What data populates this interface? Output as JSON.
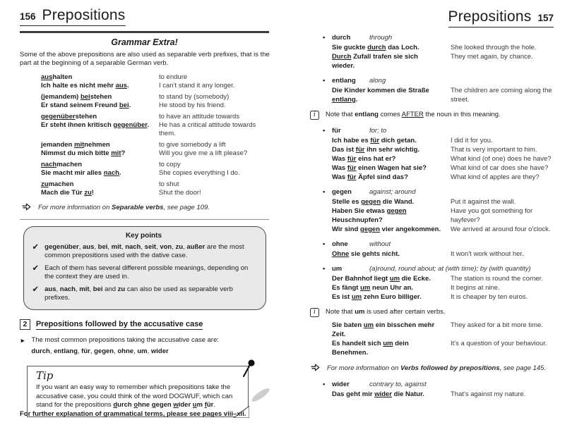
{
  "colors": {
    "text": "#1c1c1c",
    "muted_text": "#3a3a3a",
    "rule": "#3d3d3d",
    "keypoints_bg": "#e9e9e9",
    "box_border": "#4a4a4a"
  },
  "icons": {
    "check": "✔",
    "bullet": "•",
    "arrow_bullet": "►",
    "info": "i",
    "crossref_arrow": "right-block-arrow",
    "tip_pin": "pushpin"
  },
  "left_page": {
    "page_number": "156",
    "title": "Prepositions",
    "grammar_extra": {
      "heading": "Grammar Extra!",
      "intro": "Some of the above prepositions are also used as separable verb prefixes, that is the part at the beginning of a separable German verb.",
      "verb_pairs": [
        {
          "rows": [
            {
              "de": "**__aus__halten**",
              "en": "to endure"
            },
            {
              "de": "**Ich halte es nicht mehr __aus__.**",
              "en": "I can't stand it any longer."
            }
          ]
        },
        {
          "rows": [
            {
              "de": "**(jemandem) __bei__stehen**",
              "en": "to stand by (somebody)"
            },
            {
              "de": "**Er stand seinem Freund __bei__.**",
              "en": "He stood by his friend."
            }
          ]
        },
        {
          "rows": [
            {
              "de": "**__gegenüber__stehen**",
              "en": "to have an attitude towards"
            },
            {
              "de": "**Er steht ihnen kritisch __gegenüber__.**",
              "en": "He has a critical attitude towards them."
            }
          ]
        },
        {
          "rows": [
            {
              "de": "**jemanden __mit__nehmen**",
              "en": "to give somebody a lift"
            },
            {
              "de": "**Nimmst du mich bitte __mit__?**",
              "en": "Will you give me a lift please?"
            }
          ]
        },
        {
          "rows": [
            {
              "de": "**__nach__machen**",
              "en": "to copy"
            },
            {
              "de": "**Sie macht mir alles __nach__.**",
              "en": "She copies everything I do."
            }
          ]
        },
        {
          "rows": [
            {
              "de": "**__zu__machen**",
              "en": "to shut"
            },
            {
              "de": "**Mach die Tür __zu__!**",
              "en": "Shut the door!"
            }
          ]
        }
      ],
      "crossref": "For more information on **Separable verbs**, see page 109."
    },
    "key_points": {
      "title": "Key points",
      "items": [
        "**gegenüber**, **aus**, **bei**, **mit**, **nach**, **seit**, **von**, **zu**, **außer** are the most common prepositions used with the dative case.",
        "Each of them has several different possible meanings, depending on the context they are used in.",
        "**aus**, **nach**, **mit**, **bei** and **zu** can also be used as separable verb prefixes."
      ]
    },
    "section": {
      "number": "2",
      "heading": "Prepositions followed by the accusative case",
      "bullet_text": "The most common prepositions taking the accusative case are:",
      "prepositions": "**durch**, **entlang**, **für**, **gegen**, **ohne**, **um**, **wider**"
    },
    "tip": {
      "heading": "Tip",
      "text": "If you want an easy way to remember which prepositions take the accusative case, you could think of the word DOGWUF, which can stand for the prepositions **__d__urch __o__hne __g__egen __w__ider __u__m __f__ür**."
    },
    "footer": "For further explanation of grammatical terms, please see pages viii–xii."
  },
  "right_page": {
    "page_number": "157",
    "title": "Prepositions",
    "blocks": [
      {
        "type": "entry",
        "word": "durch",
        "meaning": "through",
        "examples": [
          {
            "de": "**Sie guckte __durch__ das Loch.**",
            "en": "She looked through the hole."
          },
          {
            "de": "**__Durch__ Zufall trafen sie sich wieder.**",
            "en": "They met again, by chance."
          }
        ]
      },
      {
        "type": "entry",
        "word": "entlang",
        "meaning": "along",
        "examples": [
          {
            "de": "**Die Kinder kommen die Straße __entlang__.**",
            "en": "The children are coming along the street."
          }
        ]
      },
      {
        "type": "note",
        "text": "Note that **entlang** comes __AFTER__ the noun in this meaning."
      },
      {
        "type": "entry",
        "word": "für",
        "meaning": "for; to",
        "examples": [
          {
            "de": "**Ich habe es __für__ dich getan.**",
            "en": "I did it for you."
          },
          {
            "de": "**Das ist __für__ ihn sehr wichtig.**",
            "en": "That is very important to him."
          },
          {
            "de": "**Was __für__ eins hat er?**",
            "en": "What kind (of one) does he have?"
          },
          {
            "de": "**Was __für__ einen Wagen hat sie?**",
            "en": "What kind of car does she have?"
          },
          {
            "de": "**Was __für__ Äpfel sind das?**",
            "en": "What kind of apples are they?"
          }
        ]
      },
      {
        "type": "entry",
        "word": "gegen",
        "meaning": "against; around",
        "examples": [
          {
            "de": "**Stelle es __gegen__ die Wand.**",
            "en": "Put it against the wall."
          },
          {
            "de": "**Haben Sie etwas __gegen__ Heuschnupfen?**",
            "en": "Have you got something for hayfever?"
          },
          {
            "de": "**Wir sind __gegen__ vier angekommen.**",
            "en": "We arrived at around four o'clock."
          }
        ]
      },
      {
        "type": "entry",
        "word": "ohne",
        "meaning": "without",
        "examples": [
          {
            "de": "**__Ohne__ sie gehts nicht.**",
            "en": "It won't work without her."
          }
        ]
      },
      {
        "type": "entry",
        "word": "um",
        "meaning": "(a)round, round about; at (with time); by (with quantity)",
        "examples": [
          {
            "de": "**Der Bahnhof liegt __um__ die Ecke.**",
            "en": "The station is round the corner."
          },
          {
            "de": "**Es fängt __um__ neun Uhr an.**",
            "en": "It begins at nine."
          },
          {
            "de": "**Es ist __um__ zehn Euro billiger.**",
            "en": "It is cheaper by ten euros."
          }
        ]
      },
      {
        "type": "note",
        "text": "Note that **um** is used after certain verbs.",
        "examples": [
          {
            "de": "**Sie baten __um__ ein bisschen mehr Zeit.**",
            "en": "They asked for a bit more time."
          },
          {
            "de": "**Es handelt sich __um__ dein Benehmen.**",
            "en": "It's a question of your behaviour."
          }
        ]
      },
      {
        "type": "crossref",
        "text": "For more information on **Verbs followed by prepositions**, see page 145."
      },
      {
        "type": "entry",
        "word": "wider",
        "meaning": "contrary to, against",
        "examples": [
          {
            "de": "**Das geht mir __wider__ die Natur.**",
            "en": "That's against my nature."
          }
        ]
      }
    ]
  }
}
